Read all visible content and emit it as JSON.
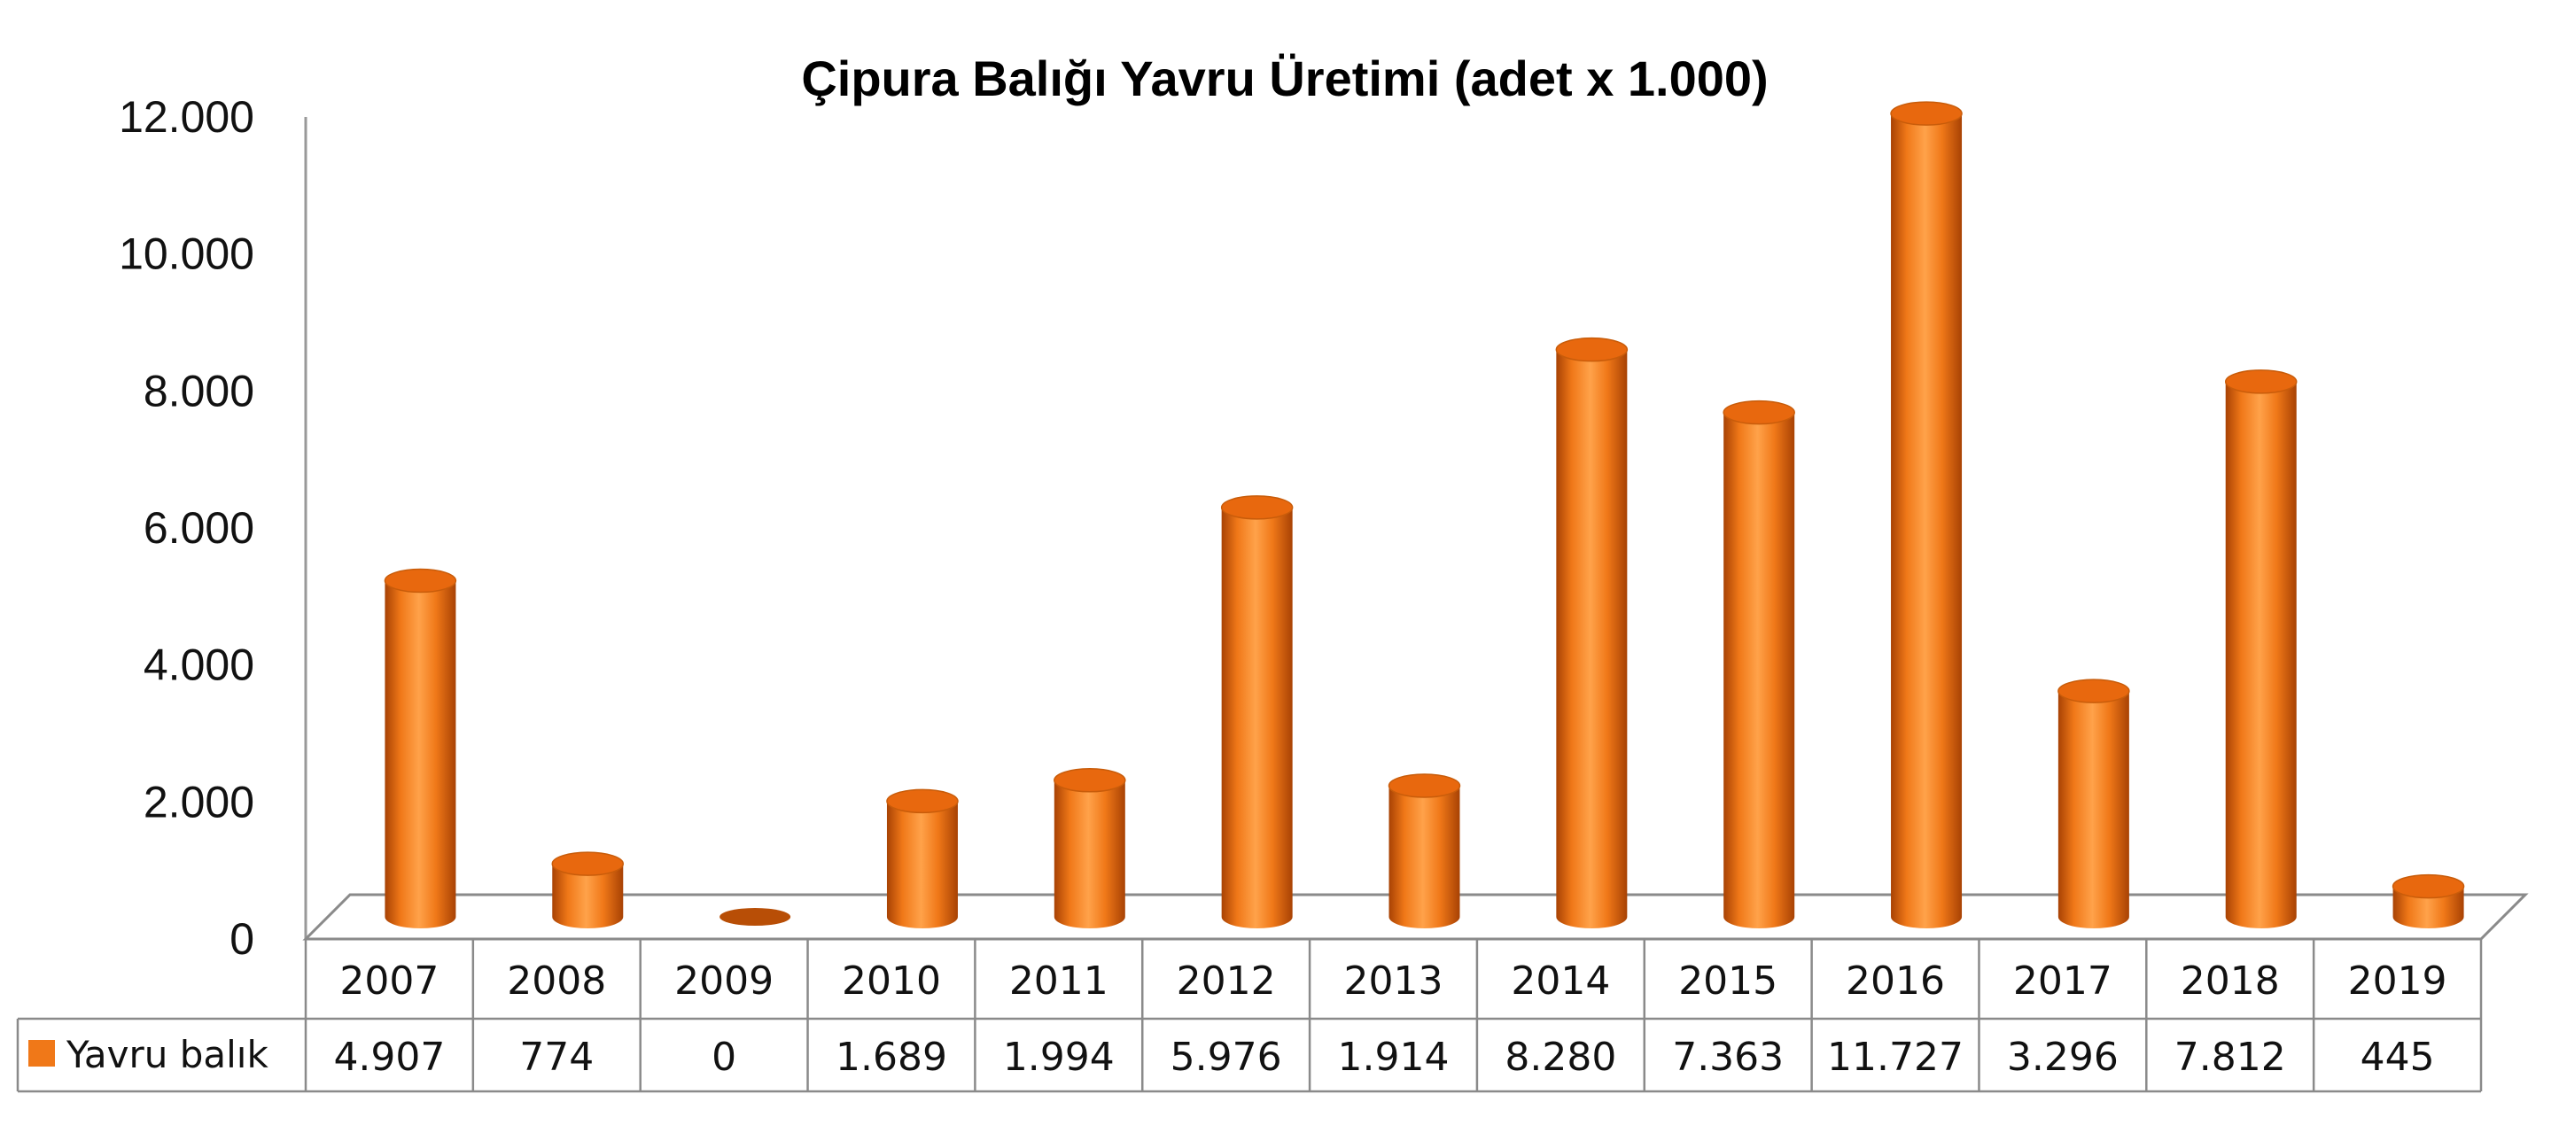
{
  "chart_data": {
    "type": "bar",
    "title": "Çipura Balığı Yavru Üretimi (adet x 1.000)",
    "categories": [
      "2007",
      "2008",
      "2009",
      "2010",
      "2011",
      "2012",
      "2013",
      "2014",
      "2015",
      "2016",
      "2017",
      "2018",
      "2019"
    ],
    "series": [
      {
        "name": "Yavru balık",
        "values": [
          4907,
          774,
          0,
          1689,
          1994,
          5976,
          1914,
          8280,
          7363,
          11727,
          3296,
          7812,
          445
        ],
        "labels": [
          "4.907",
          "774",
          "0",
          "1.689",
          "1.994",
          "5.976",
          "1.914",
          "8.280",
          "7.363",
          "11.727",
          "3.296",
          "7.812",
          "445"
        ]
      }
    ],
    "y_ticks": [
      "0",
      "2.000",
      "4.000",
      "6.000",
      "8.000",
      "10.000",
      "12.000"
    ],
    "ylim": [
      0,
      12000
    ],
    "data_table": true,
    "legend": "data-table",
    "grid": false,
    "style": "3d-cylinder",
    "colors": {
      "bar": "#F07818",
      "bar_dark": "#B84E06",
      "bar_light": "#FFA552",
      "bar_top": "#E8680E"
    }
  }
}
